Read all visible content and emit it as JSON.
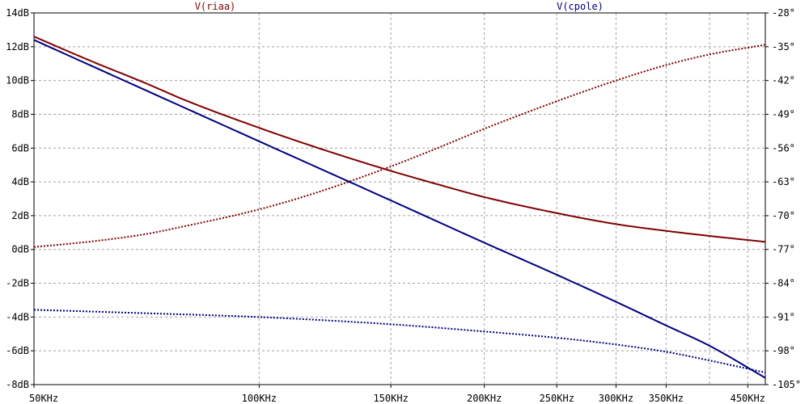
{
  "chart_data": {
    "type": "line",
    "title": "",
    "x_scale": "log",
    "x_unit": "Hz",
    "xlim": [
      50000,
      475000
    ],
    "x_ticks": [
      {
        "value": 50000,
        "label": "50KHz"
      },
      {
        "value": 100000,
        "label": "100KHz"
      },
      {
        "value": 150000,
        "label": "150KHz"
      },
      {
        "value": 200000,
        "label": "200KHz"
      },
      {
        "value": 250000,
        "label": "250KHz"
      },
      {
        "value": 300000,
        "label": "300KHz"
      },
      {
        "value": 350000,
        "label": "350KHz"
      },
      {
        "value": 450000,
        "label": "450KHz"
      }
    ],
    "x_gridlines": [
      50000,
      100000,
      150000,
      200000,
      250000,
      300000,
      350000,
      400000,
      450000
    ],
    "y_left": {
      "unit": "dB",
      "lim": [
        -8,
        14
      ],
      "ticks": [
        {
          "value": 14,
          "label": "14dB"
        },
        {
          "value": 12,
          "label": "12dB"
        },
        {
          "value": 10,
          "label": "10dB"
        },
        {
          "value": 8,
          "label": "8dB"
        },
        {
          "value": 6,
          "label": "6dB"
        },
        {
          "value": 4,
          "label": "4dB"
        },
        {
          "value": 2,
          "label": "2dB"
        },
        {
          "value": 0,
          "label": "0dB"
        },
        {
          "value": -2,
          "label": "-2dB"
        },
        {
          "value": -4,
          "label": "-4dB"
        },
        {
          "value": -6,
          "label": "-6dB"
        },
        {
          "value": -8,
          "label": "-8dB"
        }
      ]
    },
    "y_right": {
      "unit": "°",
      "lim": [
        -105,
        -28
      ],
      "ticks": [
        {
          "value": -28,
          "label": "-28°"
        },
        {
          "value": -35,
          "label": "-35°"
        },
        {
          "value": -42,
          "label": "-42°"
        },
        {
          "value": -49,
          "label": "-49°"
        },
        {
          "value": -56,
          "label": "-56°"
        },
        {
          "value": -63,
          "label": "-63°"
        },
        {
          "value": -70,
          "label": "-70°"
        },
        {
          "value": -77,
          "label": "-77°"
        },
        {
          "value": -84,
          "label": "-84°"
        },
        {
          "value": -91,
          "label": "-91°"
        },
        {
          "value": -98,
          "label": "-98°"
        },
        {
          "value": -105,
          "label": "-105°"
        }
      ]
    },
    "grid": true,
    "series": [
      {
        "name": "V(riaa)",
        "color": "#800000",
        "magnitude_db": [
          {
            "x": 50000,
            "y": 12.6
          },
          {
            "x": 60000,
            "y": 11.1
          },
          {
            "x": 70000,
            "y": 9.9
          },
          {
            "x": 80000,
            "y": 8.8
          },
          {
            "x": 100000,
            "y": 7.2
          },
          {
            "x": 120000,
            "y": 6.0
          },
          {
            "x": 150000,
            "y": 4.65
          },
          {
            "x": 175000,
            "y": 3.8
          },
          {
            "x": 200000,
            "y": 3.1
          },
          {
            "x": 250000,
            "y": 2.15
          },
          {
            "x": 300000,
            "y": 1.5
          },
          {
            "x": 350000,
            "y": 1.1
          },
          {
            "x": 400000,
            "y": 0.8
          },
          {
            "x": 475000,
            "y": 0.45
          }
        ],
        "phase_deg": [
          {
            "x": 50000,
            "y": -76.5
          },
          {
            "x": 60000,
            "y": -75.3
          },
          {
            "x": 70000,
            "y": -73.9
          },
          {
            "x": 80000,
            "y": -72.1
          },
          {
            "x": 100000,
            "y": -68.7
          },
          {
            "x": 120000,
            "y": -65.1
          },
          {
            "x": 150000,
            "y": -59.8
          },
          {
            "x": 175000,
            "y": -55.7
          },
          {
            "x": 200000,
            "y": -52.0
          },
          {
            "x": 250000,
            "y": -46.3
          },
          {
            "x": 300000,
            "y": -42.0
          },
          {
            "x": 350000,
            "y": -38.8
          },
          {
            "x": 400000,
            "y": -36.6
          },
          {
            "x": 475000,
            "y": -34.6
          }
        ]
      },
      {
        "name": "V(cpole)",
        "color": "#000080",
        "magnitude_db": [
          {
            "x": 50000,
            "y": 12.4
          },
          {
            "x": 100000,
            "y": 6.4
          },
          {
            "x": 150000,
            "y": 2.9
          },
          {
            "x": 200000,
            "y": 0.4
          },
          {
            "x": 250000,
            "y": -1.5
          },
          {
            "x": 300000,
            "y": -3.1
          },
          {
            "x": 350000,
            "y": -4.5
          },
          {
            "x": 400000,
            "y": -5.7
          },
          {
            "x": 475000,
            "y": -7.6
          }
        ],
        "phase_deg": [
          {
            "x": 50000,
            "y": -89.5
          },
          {
            "x": 70000,
            "y": -90.2
          },
          {
            "x": 100000,
            "y": -91.0
          },
          {
            "x": 150000,
            "y": -92.5
          },
          {
            "x": 200000,
            "y": -94.0
          },
          {
            "x": 250000,
            "y": -95.3
          },
          {
            "x": 300000,
            "y": -96.7
          },
          {
            "x": 350000,
            "y": -98.2
          },
          {
            "x": 400000,
            "y": -100.0
          },
          {
            "x": 475000,
            "y": -102.5
          }
        ]
      }
    ]
  }
}
